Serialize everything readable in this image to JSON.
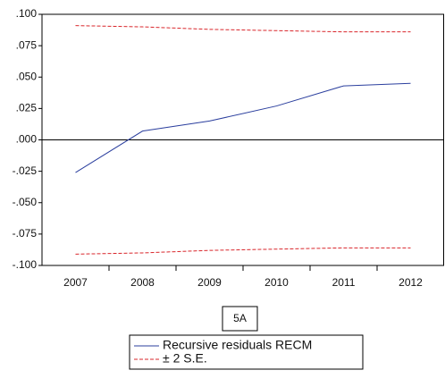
{
  "chart_data": {
    "type": "line",
    "categories": [
      "2007",
      "2008",
      "2009",
      "2010",
      "2011",
      "2012"
    ],
    "series": [
      {
        "name": "Recursive residuals RECM",
        "color": "#2b3f9e",
        "values": [
          -0.026,
          0.007,
          0.015,
          0.027,
          0.043,
          0.045
        ]
      },
      {
        "name": "± 2 S.E.",
        "color": "#d9262b",
        "dashed": true,
        "values": [
          0.091,
          0.09,
          0.088,
          0.087,
          0.086,
          0.086
        ],
        "lower_values": [
          -0.091,
          -0.09,
          -0.088,
          -0.087,
          -0.086,
          -0.086
        ]
      }
    ],
    "ylim": [
      -0.1,
      0.1
    ],
    "yticks": [
      {
        "value": 0.1,
        "label": ".100"
      },
      {
        "value": 0.075,
        "label": ".075"
      },
      {
        "value": 0.05,
        "label": ".050"
      },
      {
        "value": 0.025,
        "label": ".025"
      },
      {
        "value": 0,
        "label": ".000"
      },
      {
        "value": -0.025,
        "label": "-.025"
      },
      {
        "value": -0.05,
        "label": "-.050"
      },
      {
        "value": -0.075,
        "label": "-.075"
      },
      {
        "value": -0.1,
        "label": "-.100"
      }
    ],
    "zero_line": true,
    "annotation": "5A"
  }
}
